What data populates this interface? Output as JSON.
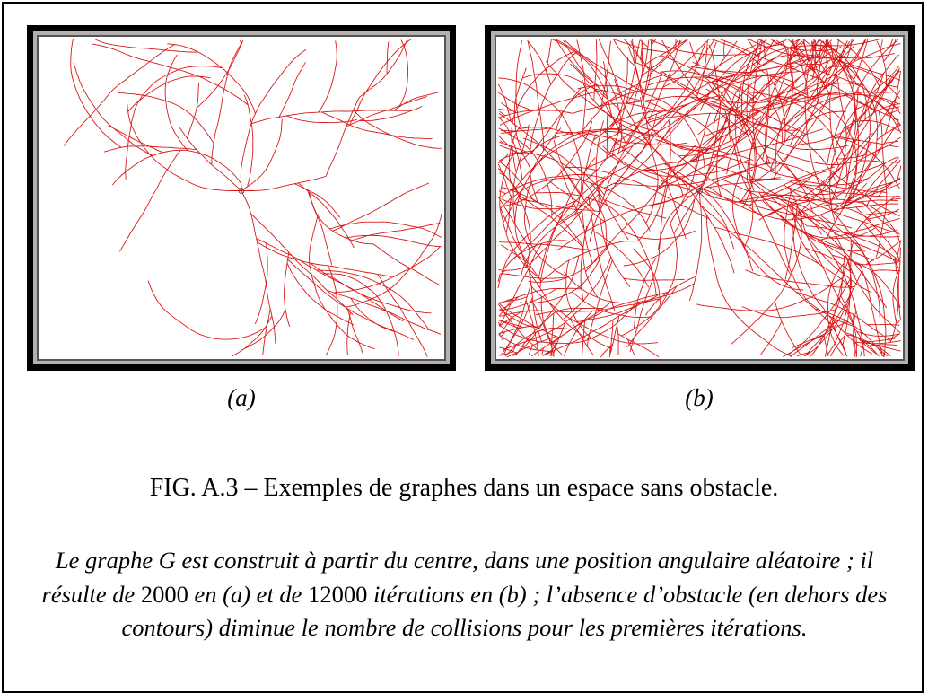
{
  "figure": {
    "panels": [
      {
        "label": "(a)"
      },
      {
        "label": "(b)"
      }
    ],
    "caption": "FIG. A.3 – Exemples de graphes dans un espace sans obstacle.",
    "description": [
      "Le graphe ",
      "G",
      " est construit à partir du centre, dans une position angulaire aléatoire ; il résulte de ",
      2000,
      " en (a) et de ",
      12000,
      " itérations en (b) ; l’absence d’obstacle (en dehors des contours) diminue le nombre de collisions pour les premières itérations."
    ]
  }
}
